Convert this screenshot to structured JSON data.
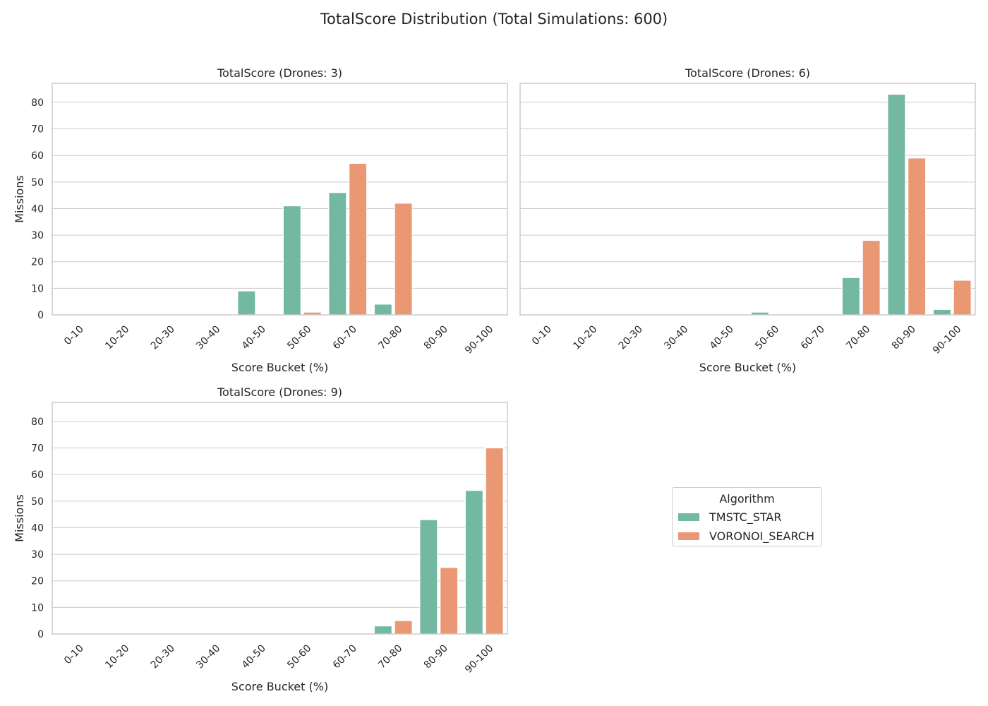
{
  "figure": {
    "title": "TotalScore Distribution (Total Simulations: 600)"
  },
  "legend": {
    "title": "Algorithm",
    "items": [
      {
        "label": "TMSTC_STAR",
        "color": "#73b8a0"
      },
      {
        "label": "VORONOI_SEARCH",
        "color": "#ea9874"
      }
    ]
  },
  "chart_data": [
    {
      "type": "bar",
      "title": "TotalScore (Drones: 3)",
      "xlabel": "Score Bucket (%)",
      "ylabel": "Missions",
      "categories": [
        "0-10",
        "10-20",
        "20-30",
        "30-40",
        "40-50",
        "50-60",
        "60-70",
        "70-80",
        "80-90",
        "90-100"
      ],
      "series": [
        {
          "name": "TMSTC_STAR",
          "values": [
            0,
            0,
            0,
            0,
            9,
            41,
            46,
            4,
            0,
            0
          ]
        },
        {
          "name": "VORONOI_SEARCH",
          "values": [
            0,
            0,
            0,
            0,
            0,
            1,
            57,
            42,
            0,
            0
          ]
        }
      ],
      "ylim": [
        0,
        87.15
      ],
      "yticks": [
        0,
        10,
        20,
        30,
        40,
        50,
        60,
        70,
        80
      ],
      "grid": true
    },
    {
      "type": "bar",
      "title": "TotalScore (Drones: 6)",
      "xlabel": "Score Bucket (%)",
      "ylabel": "",
      "categories": [
        "0-10",
        "10-20",
        "20-30",
        "30-40",
        "40-50",
        "50-60",
        "60-70",
        "70-80",
        "80-90",
        "90-100"
      ],
      "series": [
        {
          "name": "TMSTC_STAR",
          "values": [
            0,
            0,
            0,
            0,
            0,
            1,
            0,
            14,
            83,
            2
          ]
        },
        {
          "name": "VORONOI_SEARCH",
          "values": [
            0,
            0,
            0,
            0,
            0,
            0,
            0,
            28,
            59,
            13
          ]
        }
      ],
      "ylim": [
        0,
        87.15
      ],
      "yticks": [
        0,
        10,
        20,
        30,
        40,
        50,
        60,
        70,
        80
      ],
      "grid": true
    },
    {
      "type": "bar",
      "title": "TotalScore (Drones: 9)",
      "xlabel": "Score Bucket (%)",
      "ylabel": "Missions",
      "categories": [
        "0-10",
        "10-20",
        "20-30",
        "30-40",
        "40-50",
        "50-60",
        "60-70",
        "70-80",
        "80-90",
        "90-100"
      ],
      "series": [
        {
          "name": "TMSTC_STAR",
          "values": [
            0,
            0,
            0,
            0,
            0,
            0,
            0,
            3,
            43,
            54
          ]
        },
        {
          "name": "VORONOI_SEARCH",
          "values": [
            0,
            0,
            0,
            0,
            0,
            0,
            0,
            5,
            25,
            70
          ]
        }
      ],
      "ylim": [
        0,
        87.15
      ],
      "yticks": [
        0,
        10,
        20,
        30,
        40,
        50,
        60,
        70,
        80
      ],
      "grid": true
    }
  ]
}
